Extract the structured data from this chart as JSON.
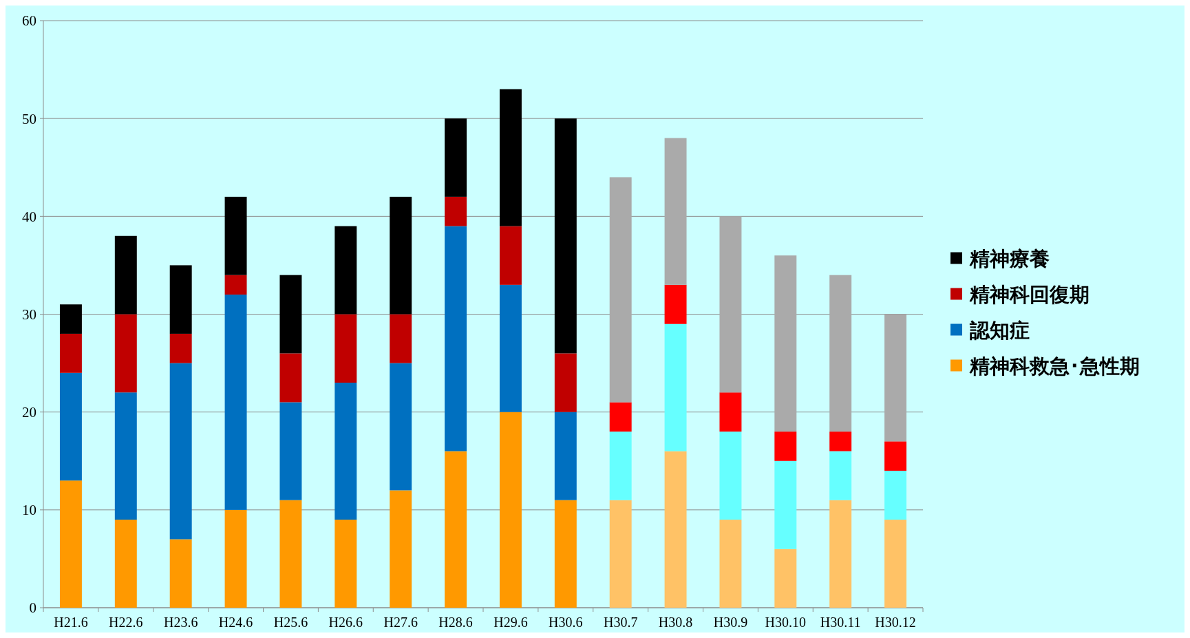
{
  "chart_data": {
    "type": "bar",
    "stacked": true,
    "categories": [
      "H21.6",
      "H22.6",
      "H23.6",
      "H24.6",
      "H25.6",
      "H26.6",
      "H27.6",
      "H28.6",
      "H29.6",
      "H30.6",
      "H30.7",
      "H30.8",
      "H30.9",
      "H30.10",
      "H30.11",
      "H30.12"
    ],
    "series": [
      {
        "name": "精神科救急･急性期",
        "color": "#ff9900",
        "colors": [
          "#ff9900",
          "#ff9900",
          "#ff9900",
          "#ff9900",
          "#ff9900",
          "#ff9900",
          "#ff9900",
          "#ff9900",
          "#ff9900",
          "#ff9900",
          "#ffc266",
          "#ffc266",
          "#ffc266",
          "#ffc266",
          "#ffc266",
          "#ffc266"
        ],
        "values": [
          13,
          9,
          7,
          10,
          11,
          9,
          12,
          16,
          20,
          11,
          11,
          16,
          9,
          6,
          11,
          9
        ]
      },
      {
        "name": "認知症",
        "color": "#0070c0",
        "colors": [
          "#0070c0",
          "#0070c0",
          "#0070c0",
          "#0070c0",
          "#0070c0",
          "#0070c0",
          "#0070c0",
          "#0070c0",
          "#0070c0",
          "#0070c0",
          "#66ffff",
          "#66ffff",
          "#66ffff",
          "#66ffff",
          "#66ffff",
          "#66ffff"
        ],
        "values": [
          11,
          13,
          18,
          22,
          10,
          14,
          13,
          23,
          13,
          9,
          7,
          13,
          9,
          9,
          5,
          5
        ]
      },
      {
        "name": "精神科回復期",
        "color": "#c00000",
        "colors": [
          "#c00000",
          "#c00000",
          "#c00000",
          "#c00000",
          "#c00000",
          "#c00000",
          "#c00000",
          "#c00000",
          "#c00000",
          "#c00000",
          "#ff0000",
          "#ff0000",
          "#ff0000",
          "#ff0000",
          "#ff0000",
          "#ff0000"
        ],
        "values": [
          4,
          8,
          3,
          2,
          5,
          7,
          5,
          3,
          6,
          6,
          3,
          4,
          4,
          3,
          2,
          3
        ]
      },
      {
        "name": "精神療養",
        "color": "#000000",
        "colors": [
          "#000000",
          "#000000",
          "#000000",
          "#000000",
          "#000000",
          "#000000",
          "#000000",
          "#000000",
          "#000000",
          "#000000",
          "#aaaaaa",
          "#aaaaaa",
          "#aaaaaa",
          "#aaaaaa",
          "#aaaaaa",
          "#aaaaaa"
        ],
        "values": [
          3,
          8,
          7,
          8,
          8,
          9,
          12,
          8,
          14,
          24,
          23,
          15,
          18,
          18,
          16,
          13
        ]
      }
    ],
    "ylim": [
      0,
      60
    ],
    "yticks": [
      0,
      10,
      20,
      30,
      40,
      50,
      60
    ],
    "grid": "y",
    "legend": "right"
  }
}
